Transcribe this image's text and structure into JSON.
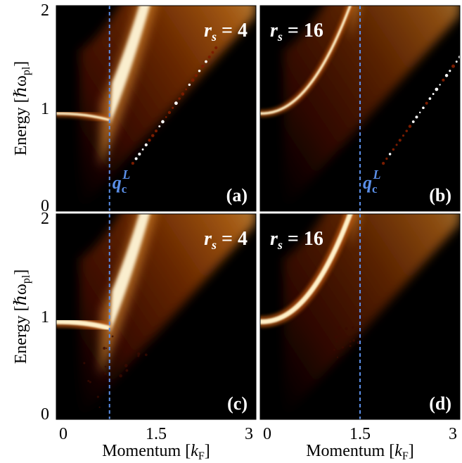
{
  "figure": {
    "panels": [
      "a",
      "b",
      "c",
      "d"
    ]
  },
  "chart_data": [
    {
      "type": "heatmap",
      "panel_label": "(a)",
      "annotation": "r_s = 4",
      "rs": 4,
      "qc_label": "q_c^L",
      "qc_momentum": 0.8,
      "xlim": [
        0,
        3
      ],
      "ylim": [
        0,
        2
      ],
      "ylabel": "Energy [ℏω_pl]",
      "yticks": [
        "0",
        "1",
        "2"
      ],
      "plasmon_energy_at_zero_momentum": 0.95,
      "colormap": "black-red-orange-yellow-white (afmhot)"
    },
    {
      "type": "heatmap",
      "panel_label": "(b)",
      "annotation": "r_s = 16",
      "rs": 16,
      "qc_label": "q_c^L",
      "qc_momentum": 1.5,
      "xlim": [
        0,
        3
      ],
      "ylim": [
        0,
        2
      ],
      "plasmon_energy_at_zero_momentum": 0.95,
      "colormap": "black-red-orange-yellow-white (afmhot)"
    },
    {
      "type": "heatmap",
      "panel_label": "(c)",
      "annotation": "r_s = 4",
      "rs": 4,
      "qc_momentum": 0.8,
      "xlim": [
        0,
        3
      ],
      "ylim": [
        0,
        2
      ],
      "xlabel": "Momentum [k_F]",
      "ylabel": "Energy [ℏω_pl]",
      "xticks": [
        "0",
        "1.5",
        "3"
      ],
      "yticks": [
        "0",
        "1",
        "2"
      ],
      "plasmon_energy_at_zero_momentum": 0.95,
      "colormap": "black-red-orange-yellow-white (afmhot)"
    },
    {
      "type": "heatmap",
      "panel_label": "(d)",
      "annotation": "r_s = 16",
      "rs": 16,
      "qc_momentum": 1.5,
      "xlim": [
        0,
        3
      ],
      "ylim": [
        0,
        2
      ],
      "xlabel": "Momentum [k_F]",
      "xticks": [
        "0",
        "1.5",
        "3"
      ],
      "plasmon_energy_at_zero_momentum": 0.95,
      "colormap": "black-red-orange-yellow-white (afmhot)"
    }
  ],
  "colors": {
    "background": "#000000",
    "qc_line": "#5b8fe8",
    "label_white": "#ffffff",
    "text": "#000000"
  }
}
